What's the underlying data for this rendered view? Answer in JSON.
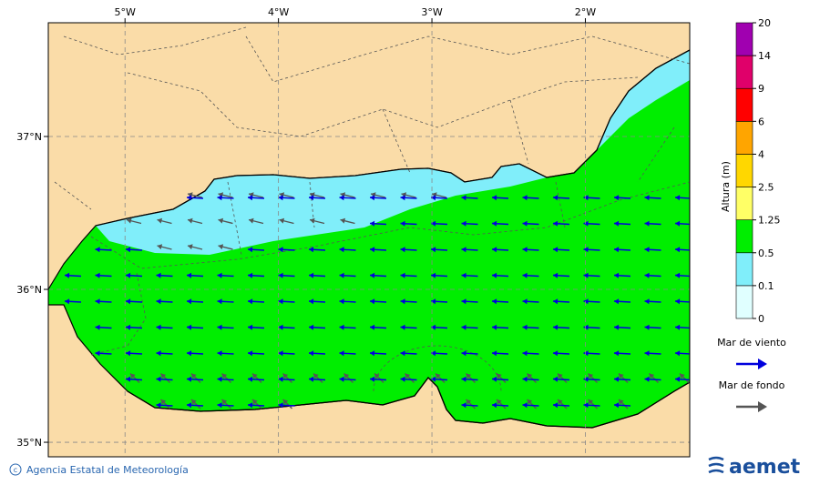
{
  "map": {
    "lonlim": [
      -5.5,
      -1.32
    ],
    "latlim": [
      34.905,
      37.744
    ],
    "lon_ticks": [
      {
        "value": -5,
        "label": "5°W"
      },
      {
        "value": -4,
        "label": "4°W"
      },
      {
        "value": -3,
        "label": "3°W"
      },
      {
        "value": -2,
        "label": "2°W"
      }
    ],
    "lat_ticks": [
      {
        "value": 37,
        "label": "37°N"
      },
      {
        "value": 36,
        "label": "36°N"
      },
      {
        "value": 35,
        "label": "35°N"
      }
    ]
  },
  "colorbar": {
    "title": "Altura (m)",
    "levels": [
      0,
      0.1,
      0.5,
      1.25,
      2.5,
      4,
      6,
      9,
      14,
      20
    ],
    "colors": [
      "#e0ffff",
      "#80eefa",
      "#00ee00",
      "#ffff66",
      "#ffd700",
      "#ffa500",
      "#ff0000",
      "#e0006a",
      "#a000b0"
    ]
  },
  "legend": {
    "items": [
      {
        "label": "Mar de viento",
        "color": "#0000dd"
      },
      {
        "label": "Mar de fondo",
        "color": "#555555"
      }
    ]
  },
  "footer": {
    "agency": "Agencia Estatal de Meteorología",
    "logo": "aemet"
  }
}
